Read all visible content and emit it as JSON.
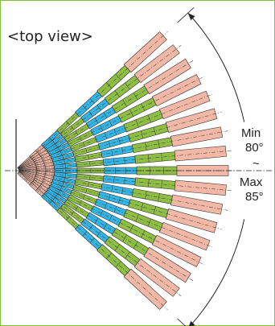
{
  "title": "<top view>",
  "angle_range": {
    "min_label": "Min",
    "min_value": "80°",
    "separator": "~",
    "max_label": "Max",
    "max_value": "85°",
    "min_deg": 80,
    "max_deg": 85
  },
  "beam_count": 17,
  "segment_colors": {
    "pink": "#f2b8a5",
    "blue": "#33b6e6",
    "green": "#8fbe44",
    "outline": "#333333"
  },
  "frame_color": "#7cbf3c"
}
